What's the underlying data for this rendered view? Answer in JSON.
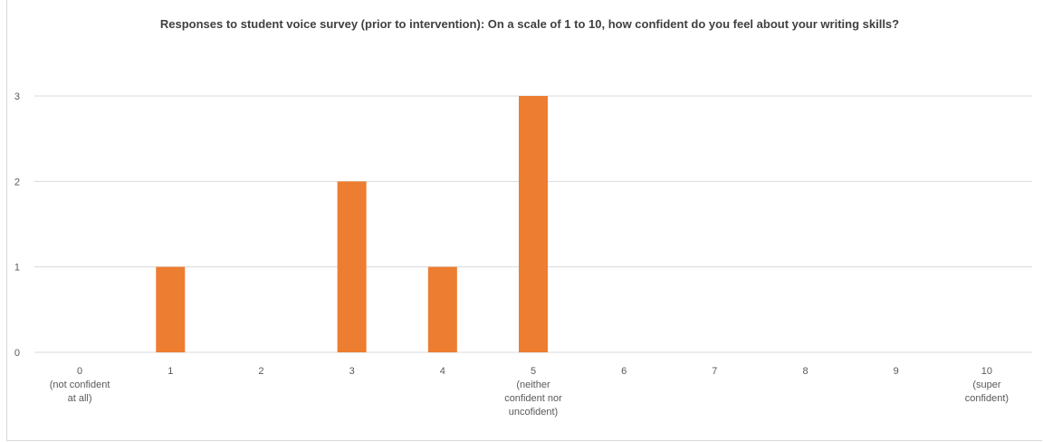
{
  "chart_data": {
    "type": "bar",
    "title": "Responses to student voice survey (prior to intervention): On a scale of 1 to 10, how confident do you feel about your writing skills?",
    "xlabel": "",
    "ylabel": "",
    "categories": [
      [
        "0",
        "(not confident",
        "at all)"
      ],
      [
        "1"
      ],
      [
        "2"
      ],
      [
        "3"
      ],
      [
        "4"
      ],
      [
        "5",
        "(neither",
        "confident nor",
        "uncofident)"
      ],
      [
        "6"
      ],
      [
        "7"
      ],
      [
        "8"
      ],
      [
        "9"
      ],
      [
        "10",
        "(super",
        "confident)"
      ]
    ],
    "values": [
      0,
      1,
      0,
      2,
      1,
      3,
      0,
      0,
      0,
      0,
      0
    ],
    "ylim": [
      0,
      3
    ],
    "yticks": [
      "0",
      "1",
      "2",
      "3"
    ],
    "grid": true,
    "legend": "none",
    "bar_color": "#ED7D31",
    "grid_color": "#D9D9D9",
    "text_color": "#595959"
  }
}
